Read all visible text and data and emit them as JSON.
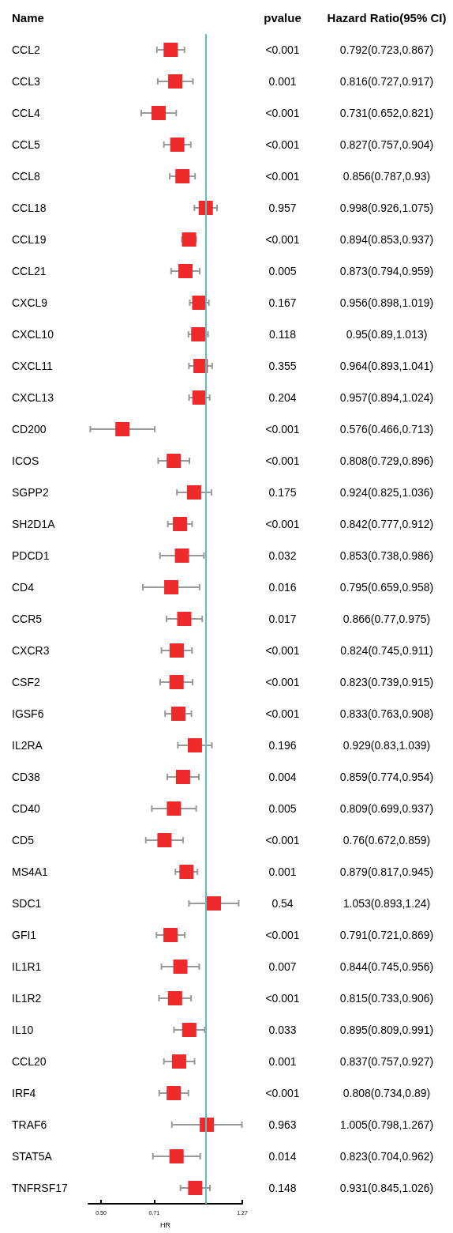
{
  "chart_data": {
    "type": "scatter",
    "orientation": "horizontal",
    "ylabel": "Name",
    "xlabel": "HR",
    "log": "x",
    "grid": false,
    "marker": "square",
    "color": "#ee2a2a",
    "categories": [
      "CCL2",
      "CCL3",
      "CCL4",
      "CCL5",
      "CCL8",
      "CCL18",
      "CCL19",
      "CCL21",
      "CXCL9",
      "CXCL10",
      "CXCL11",
      "CXCL13",
      "CD200",
      "ICOS",
      "SGPP2",
      "SH2D1A",
      "PDCD1",
      "CD4",
      "CCR5",
      "CXCR3",
      "CSF2",
      "IGSF6",
      "IL2RA",
      "CD38",
      "CD40",
      "CD5",
      "MS4A1",
      "SDC1",
      "GFI1",
      "IL1R1",
      "IL1R2",
      "IL10",
      "CCL20",
      "IRF4",
      "TRAF6",
      "STAT5A",
      "TNFRSF17"
    ],
    "values": [
      0.792,
      0.816,
      0.731,
      0.827,
      0.856,
      0.998,
      0.894,
      0.873,
      0.956,
      0.95,
      0.964,
      0.957,
      0.576,
      0.808,
      0.924,
      0.842,
      0.853,
      0.795,
      0.866,
      0.824,
      0.823,
      0.833,
      0.929,
      0.859,
      0.809,
      0.76,
      0.879,
      1.053,
      0.791,
      0.844,
      0.815,
      0.895,
      0.837,
      0.808,
      1.005,
      0.823,
      0.931
    ],
    "errors": [
      [
        0.723,
        0.867
      ],
      [
        0.727,
        0.917
      ],
      [
        0.652,
        0.821
      ],
      [
        0.757,
        0.904
      ],
      [
        0.787,
        0.93
      ],
      [
        0.926,
        1.075
      ],
      [
        0.853,
        0.937
      ],
      [
        0.794,
        0.959
      ],
      [
        0.898,
        1.019
      ],
      [
        0.89,
        1.013
      ],
      [
        0.893,
        1.041
      ],
      [
        0.894,
        1.024
      ],
      [
        0.466,
        0.713
      ],
      [
        0.729,
        0.896
      ],
      [
        0.825,
        1.036
      ],
      [
        0.777,
        0.912
      ],
      [
        0.738,
        0.986
      ],
      [
        0.659,
        0.958
      ],
      [
        0.77,
        0.975
      ],
      [
        0.745,
        0.911
      ],
      [
        0.739,
        0.915
      ],
      [
        0.763,
        0.908
      ],
      [
        0.83,
        1.039
      ],
      [
        0.774,
        0.954
      ],
      [
        0.699,
        0.937
      ],
      [
        0.672,
        0.859
      ],
      [
        0.817,
        0.945
      ],
      [
        0.893,
        1.24
      ],
      [
        0.721,
        0.869
      ],
      [
        0.745,
        0.956
      ],
      [
        0.733,
        0.906
      ],
      [
        0.809,
        0.991
      ],
      [
        0.757,
        0.927
      ],
      [
        0.734,
        0.89
      ],
      [
        0.798,
        1.267
      ],
      [
        0.704,
        0.962
      ],
      [
        0.845,
        1.026
      ]
    ],
    "value_labels": [
      "0.792(0.723,0.867)",
      "0.816(0.727,0.917)",
      "0.731(0.652,0.821)",
      "0.827(0.757,0.904)",
      "0.856(0.787,0.93)",
      "0.998(0.926,1.075)",
      "0.894(0.853,0.937)",
      "0.873(0.794,0.959)",
      "0.956(0.898,1.019)",
      "0.95(0.89,1.013)",
      "0.964(0.893,1.041)",
      "0.957(0.894,1.024)",
      "0.576(0.466,0.713)",
      "0.808(0.729,0.896)",
      "0.924(0.825,1.036)",
      "0.842(0.777,0.912)",
      "0.853(0.738,0.986)",
      "0.795(0.659,0.958)",
      "0.866(0.77,0.975)",
      "0.824(0.745,0.911)",
      "0.823(0.739,0.915)",
      "0.833(0.763,0.908)",
      "0.929(0.83,1.039)",
      "0.859(0.774,0.954)",
      "0.809(0.699,0.937)",
      "0.76(0.672,0.859)",
      "0.879(0.817,0.945)",
      "1.053(0.893,1.24)",
      "0.791(0.721,0.869)",
      "0.844(0.745,0.956)",
      "0.815(0.733,0.906)",
      "0.895(0.809,0.991)",
      "0.837(0.757,0.927)",
      "0.808(0.734,0.89)",
      "1.005(0.798,1.267)",
      "0.823(0.704,0.962)",
      "0.931(0.845,1.026)"
    ],
    "xlim": [
      0.46,
      1.27
    ],
    "xticks": [
      {
        "value": 0.5,
        "label": "0.50"
      },
      {
        "value": 0.71,
        "label": "0.71"
      },
      1.27
    ],
    "ref_lines": [
      {
        "axis": "x",
        "value": 1,
        "color": "#5fbcbf"
      }
    ],
    "annotations": [
      "pvalue",
      "Hazard Ratio(95% CI)",
      "<0.001",
      "0.001",
      "<0.001",
      "<0.001",
      "<0.001",
      "0.957",
      "<0.001",
      "0.005",
      "0.167",
      "0.118",
      "0.355",
      "0.204",
      "<0.001",
      "<0.001",
      "0.175",
      "<0.001",
      "0.032",
      "0.016",
      "0.017",
      "<0.001",
      "<0.001",
      "<0.001",
      "0.196",
      "0.004",
      "0.005",
      "<0.001",
      "0.001",
      "0.54",
      "<0.001",
      "0.007",
      "<0.001",
      "0.033",
      "0.001",
      "<0.001",
      "0.963",
      "0.014",
      "0.148"
    ]
  }
}
